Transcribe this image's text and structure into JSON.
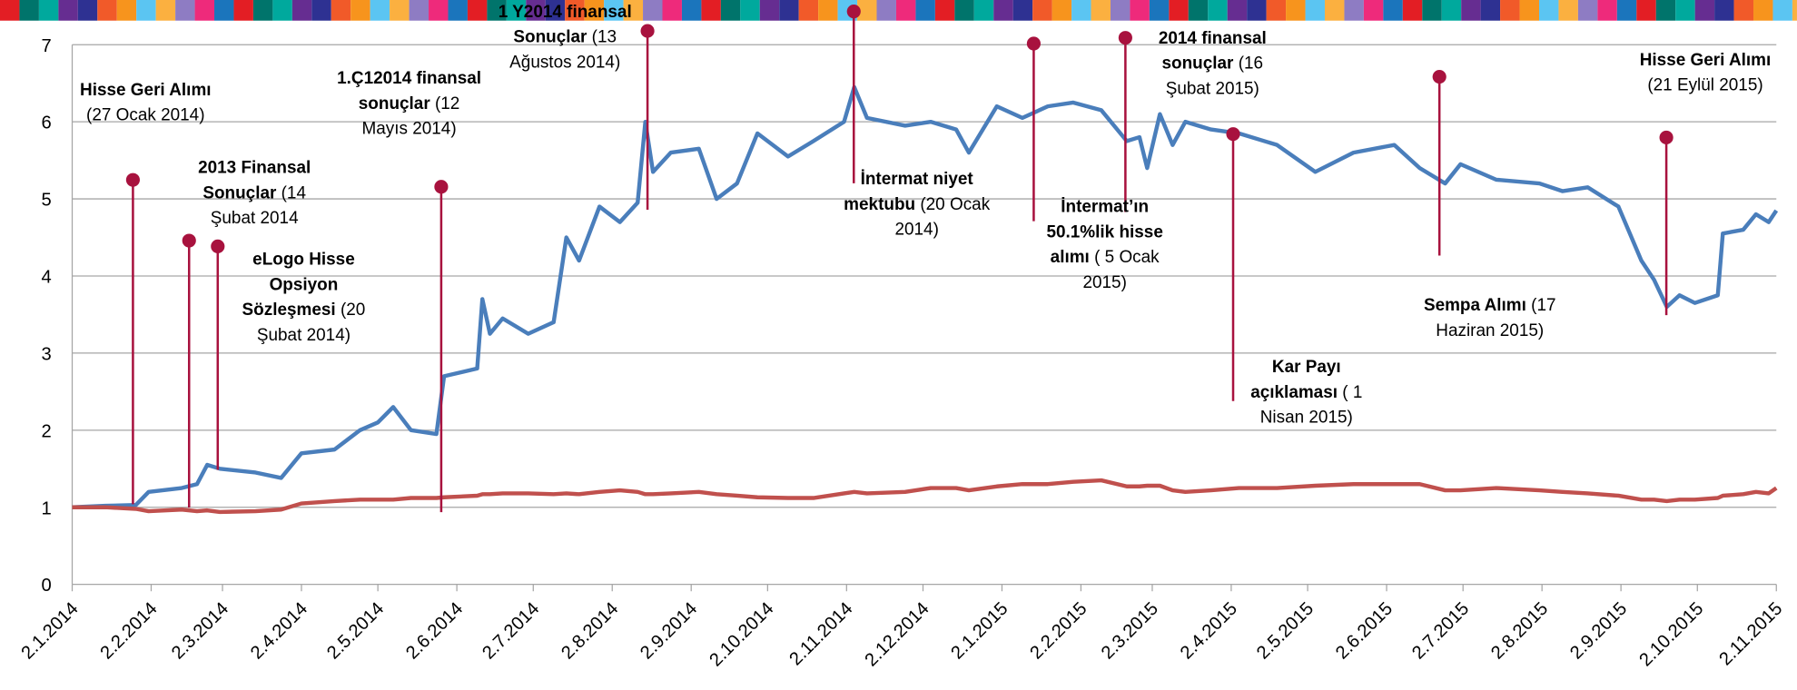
{
  "chart_data": {
    "type": "line",
    "x": [
      "2.1.2014",
      "15.1.2014",
      "27.1.2014",
      "1.2.2014",
      "14.2.2014",
      "20.2.2014",
      "24.2.2014",
      "1.3.2014",
      "15.3.2014",
      "25.3.2014",
      "2.4.2014",
      "15.4.2014",
      "25.4.2014",
      "2.5.2014",
      "8.5.2014",
      "15.5.2014",
      "25.5.2014",
      "28.5.2014",
      "10.6.2014",
      "12.6.2014",
      "15.6.2014",
      "20.6.2014",
      "30.6.2014",
      "10.7.2014",
      "15.7.2014",
      "20.7.2014",
      "28.7.2014",
      "5.8.2014",
      "12.8.2014",
      "15.8.2014",
      "18.8.2014",
      "25.8.2014",
      "5.9.2014",
      "12.9.2014",
      "20.9.2014",
      "28.9.2014",
      "10.10.2014",
      "20.10.2014",
      "1.11.2014",
      "5.11.2014",
      "10.11.2014",
      "25.11.2014",
      "5.12.2014",
      "15.12.2014",
      "20.12.2014",
      "31.12.2014",
      "10.1.2015",
      "20.1.2015",
      "30.1.2015",
      "10.2.2015",
      "20.2.2015",
      "25.2.2015",
      "28.2.2015",
      "5.3.2015",
      "10.3.2015",
      "15.3.2015",
      "25.3.2015",
      "5.4.2015",
      "20.4.2015",
      "5.5.2015",
      "20.5.2015",
      "5.6.2015",
      "15.6.2015",
      "25.6.2015",
      "1.7.2015",
      "15.7.2015",
      "1.8.2015",
      "10.8.2015",
      "20.8.2015",
      "1.9.2015",
      "10.9.2015",
      "15.9.2015",
      "20.9.2015",
      "25.9.2015",
      "1.10.2015",
      "10.10.2015",
      "12.10.2015",
      "20.10.2015",
      "25.10.2015",
      "30.10.2015",
      "2.11.2015"
    ],
    "series": [
      {
        "color": "#4a7ebb",
        "values": [
          1.0,
          1.02,
          1.03,
          1.2,
          1.25,
          1.3,
          1.55,
          1.5,
          1.45,
          1.38,
          1.7,
          1.75,
          2.0,
          2.1,
          2.3,
          2.0,
          1.95,
          2.7,
          2.8,
          3.7,
          3.25,
          3.45,
          3.25,
          3.4,
          4.5,
          4.2,
          4.9,
          4.7,
          4.95,
          6.0,
          5.35,
          5.6,
          5.65,
          5.0,
          5.2,
          5.85,
          5.55,
          5.75,
          6.0,
          6.45,
          6.05,
          5.95,
          6.0,
          5.9,
          5.6,
          6.2,
          6.05,
          6.2,
          6.25,
          6.15,
          5.75,
          5.8,
          5.4,
          6.1,
          5.7,
          6.0,
          5.9,
          5.85,
          5.7,
          5.35,
          5.6,
          5.7,
          5.4,
          5.2,
          5.45,
          5.25,
          5.2,
          5.1,
          5.15,
          4.9,
          4.2,
          3.95,
          3.6,
          3.75,
          3.65,
          3.75,
          4.55,
          4.6,
          4.8,
          4.7,
          4.85
        ]
      },
      {
        "color": "#c0504d",
        "values": [
          1.0,
          1.0,
          0.98,
          0.95,
          0.97,
          0.95,
          0.96,
          0.94,
          0.95,
          0.97,
          1.05,
          1.08,
          1.1,
          1.1,
          1.1,
          1.12,
          1.12,
          1.13,
          1.15,
          1.17,
          1.17,
          1.18,
          1.18,
          1.17,
          1.18,
          1.17,
          1.2,
          1.22,
          1.2,
          1.17,
          1.17,
          1.18,
          1.2,
          1.17,
          1.15,
          1.13,
          1.12,
          1.12,
          1.18,
          1.2,
          1.18,
          1.2,
          1.25,
          1.25,
          1.22,
          1.27,
          1.3,
          1.3,
          1.33,
          1.35,
          1.27,
          1.27,
          1.28,
          1.28,
          1.22,
          1.2,
          1.22,
          1.25,
          1.25,
          1.28,
          1.3,
          1.3,
          1.3,
          1.22,
          1.22,
          1.25,
          1.22,
          1.2,
          1.18,
          1.15,
          1.1,
          1.1,
          1.08,
          1.1,
          1.1,
          1.12,
          1.15,
          1.17,
          1.2,
          1.18,
          1.25
        ]
      }
    ],
    "xlim": [
      "2.1.2014",
      "2.11.2015"
    ],
    "xticks": [
      "2.1.2014",
      "2.2.2014",
      "2.3.2014",
      "2.4.2014",
      "2.5.2014",
      "2.6.2014",
      "2.7.2014",
      "2.8.2014",
      "2.9.2014",
      "2.10.2014",
      "2.11.2014",
      "2.12.2014",
      "2.1.2015",
      "2.2.2015",
      "2.3.2015",
      "2.4.2015",
      "2.5.2015",
      "2.6.2015",
      "2.7.2015",
      "2.8.2015",
      "2.9.2015",
      "2.10.2015",
      "2.11.2015"
    ],
    "ylim": [
      0,
      7
    ],
    "yticks": [
      0,
      1,
      2,
      3,
      4,
      5,
      6,
      7
    ],
    "grid": true,
    "annotations": [
      {
        "bold": "Hisse Geri Alımı",
        "text": "(27 Ocak 2014)"
      },
      {
        "bold": "2013 Finansal Sonuçlar",
        "text": "(14 Şubat 2014"
      },
      {
        "bold": "eLogo Hisse Opsiyon Sözleşmesi",
        "text": "(20 Şubat  2014)"
      },
      {
        "bold": "1.Ç12014 finansal sonuçlar",
        "text": "(12 Mayıs 2014)"
      },
      {
        "bold": "1 Y2014 finansal Sonuçlar",
        "text": "(13 Ağustos 2014)"
      },
      {
        "bold": "İntermat niyet mektubu",
        "text": "(20 Ocak  2014)"
      },
      {
        "bold": "İntermat’ın 50.1%lik hisse alımı",
        "text": "( 5 Ocak 2015)"
      },
      {
        "bold": "2014 finansal sonuçlar",
        "text": "(16 Şubat 2015)"
      },
      {
        "bold": "Kar Payı açıklaması",
        "text": "( 1 Nisan 2015)"
      },
      {
        "bold": "Sempa Alımı",
        "text": "(17 Haziran 2015)"
      },
      {
        "bold": "Hisse Geri Alımı",
        "text": "(21 Eylül 2015)"
      }
    ]
  }
}
